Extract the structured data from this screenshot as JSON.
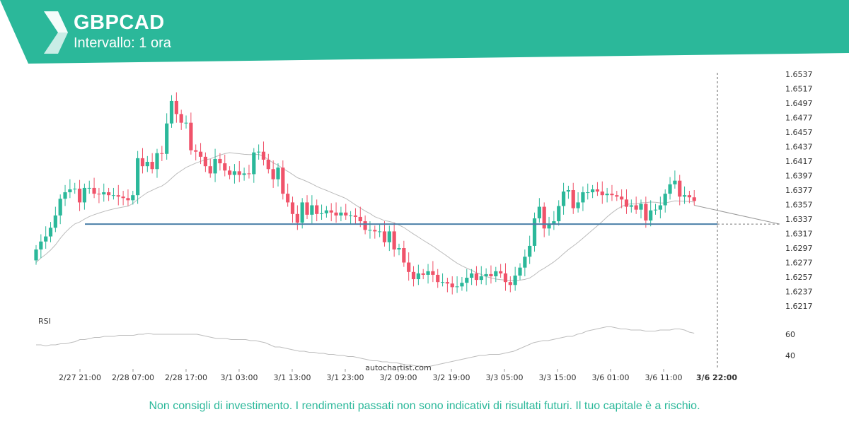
{
  "header": {
    "title": "GBPCAD",
    "subtitle": "Intervallo: 1 ora",
    "accent_color": "#2bb89a",
    "logo_icon": "autochartist-logo-icon"
  },
  "watermark": "autochartist.com",
  "disclaimer": "Non consigli di investimento. I rendimenti passati non sono indicativi di risultati futuri. Il tuo capitale è a rischio.",
  "chart_data": {
    "type": "candlestick",
    "interval": "1 ora",
    "y_ticks": [
      "1.6537",
      "1.6517",
      "1.6497",
      "1.6477",
      "1.6457",
      "1.6437",
      "1.6417",
      "1.6397",
      "1.6377",
      "1.6357",
      "1.6337",
      "1.6317",
      "1.6297",
      "1.6277",
      "1.6257",
      "1.6237",
      "1.6217"
    ],
    "ylim": [
      1.6203,
      1.654
    ],
    "x_ticks": [
      "2/27 21:00",
      "2/28 07:00",
      "2/28 17:00",
      "3/1 03:00",
      "3/1 13:00",
      "3/1 23:00",
      "3/2 09:00",
      "3/2 19:00",
      "3/3 05:00",
      "3/3 15:00",
      "3/6 01:00",
      "3/6 11:00"
    ],
    "x_tick_highlight": "3/6 22:00",
    "up_color": "#2bb89a",
    "down_color": "#f0536a",
    "support_level": 1.633,
    "support_color": "#4a7fa8",
    "closes": [
      1.6295,
      1.6306,
      1.6313,
      1.6325,
      1.6342,
      1.6365,
      1.6374,
      1.6378,
      1.6379,
      1.636,
      1.638,
      1.638,
      1.6372,
      1.6371,
      1.6374,
      1.637,
      1.637,
      1.6368,
      1.6366,
      1.6363,
      1.637,
      1.6421,
      1.641,
      1.6416,
      1.6406,
      1.6428,
      1.6427,
      1.6469,
      1.65,
      1.6482,
      1.647,
      1.647,
      1.6432,
      1.643,
      1.6423,
      1.641,
      1.64,
      1.642,
      1.6414,
      1.6404,
      1.6398,
      1.6403,
      1.6398,
      1.64,
      1.6399,
      1.6429,
      1.643,
      1.6419,
      1.6406,
      1.6392,
      1.6408,
      1.6372,
      1.636,
      1.6344,
      1.6332,
      1.636,
      1.6343,
      1.6356,
      1.6344,
      1.6345,
      1.6349,
      1.6346,
      1.6342,
      1.6346,
      1.6342,
      1.6342,
      1.634,
      1.6334,
      1.6322,
      1.6322,
      1.632,
      1.632,
      1.6305,
      1.632,
      1.6295,
      1.6297,
      1.6277,
      1.6264,
      1.6254,
      1.6262,
      1.626,
      1.6265,
      1.626,
      1.625,
      1.625,
      1.6248,
      1.6243,
      1.6244,
      1.6249,
      1.6256,
      1.6262,
      1.6253,
      1.6258,
      1.6261,
      1.6258,
      1.6265,
      1.6262,
      1.625,
      1.6246,
      1.6259,
      1.627,
      1.6285,
      1.63,
      1.6338,
      1.6354,
      1.6324,
      1.633,
      1.6334,
      1.6355,
      1.6375,
      1.6377,
      1.6352,
      1.636,
      1.6374,
      1.6374,
      1.6378,
      1.6375,
      1.637,
      1.6372,
      1.637,
      1.6368,
      1.6364,
      1.6354,
      1.6356,
      1.635,
      1.6358,
      1.6335,
      1.6349,
      1.635,
      1.6356,
      1.6372,
      1.6385,
      1.639,
      1.6368,
      1.637,
      1.6367,
      1.6362
    ],
    "rsi": {
      "label": "RSI",
      "ticks": [
        "60",
        "40"
      ],
      "ylim": [
        30,
        75
      ],
      "values": [
        50,
        50,
        49,
        50,
        50,
        51,
        51,
        52,
        53,
        55,
        55,
        56,
        57,
        57,
        58,
        58,
        58,
        59,
        59,
        59,
        59,
        60,
        60,
        61,
        60,
        60,
        60,
        60,
        60,
        60,
        60,
        60,
        60,
        60,
        59,
        58,
        57,
        56,
        56,
        56,
        55,
        55,
        55,
        55,
        54,
        54,
        53,
        52,
        50,
        48,
        48,
        47,
        46,
        45,
        44,
        44,
        43,
        43,
        42,
        42,
        41,
        41,
        40,
        40,
        39,
        39,
        38,
        37,
        36,
        35,
        35,
        34,
        34,
        33,
        33,
        32,
        31,
        31,
        30,
        30,
        29,
        30,
        31,
        32,
        33,
        34,
        35,
        36,
        37,
        38,
        39,
        40,
        40,
        41,
        41,
        41,
        42,
        43,
        44,
        46,
        48,
        50,
        52,
        53,
        54,
        54,
        55,
        56,
        57,
        58,
        58,
        60,
        61,
        63,
        64,
        65,
        66,
        67,
        67,
        66,
        65,
        65,
        64,
        64,
        64,
        63,
        63,
        63,
        64,
        64,
        64,
        65,
        65,
        64,
        62,
        61
      ]
    }
  }
}
